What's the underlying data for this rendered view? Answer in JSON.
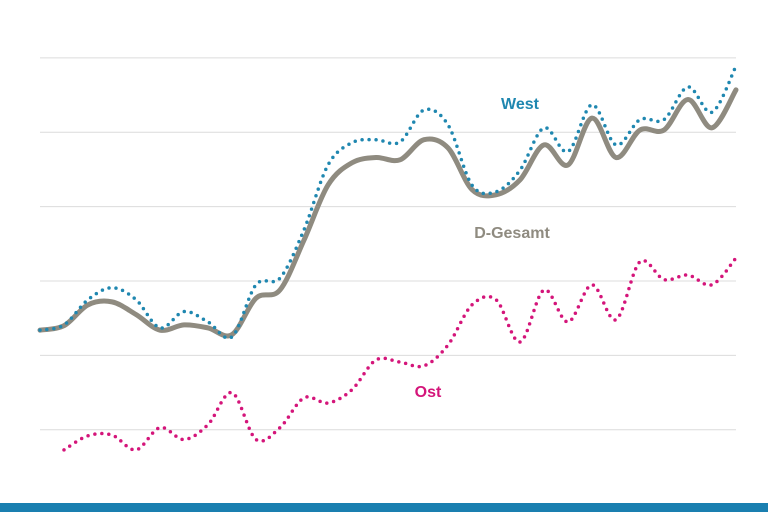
{
  "chart_data": {
    "type": "line",
    "categories": [
      null,
      null,
      null,
      null,
      null,
      null,
      null,
      null,
      null,
      null,
      null,
      null,
      null,
      null,
      null,
      null,
      null,
      null,
      null,
      null,
      null,
      null,
      null,
      null,
      null,
      null,
      null,
      null,
      null,
      null
    ],
    "ylim": [
      -0.5,
      5.2
    ],
    "yticks": [
      0,
      1,
      2,
      3,
      4,
      5
    ],
    "grid": true,
    "series": [
      {
        "name": "West",
        "color": "#1f87b0",
        "style": "dotted",
        "values": [
          1.34,
          1.41,
          1.75,
          1.91,
          1.75,
          1.37,
          1.59,
          1.45,
          1.25,
          1.95,
          2.04,
          2.69,
          3.56,
          3.86,
          3.9,
          3.87,
          4.3,
          4.1,
          3.29,
          3.2,
          3.49,
          4.06,
          3.74,
          4.37,
          3.83,
          4.17,
          4.17,
          4.61,
          4.27,
          4.89
        ]
      },
      {
        "name": "D-Gesamt",
        "color": "#8f8b80",
        "style": "solid",
        "values": [
          1.34,
          1.4,
          1.68,
          1.72,
          1.55,
          1.34,
          1.41,
          1.37,
          1.28,
          1.77,
          1.88,
          2.55,
          3.29,
          3.59,
          3.66,
          3.63,
          3.9,
          3.79,
          3.23,
          3.16,
          3.36,
          3.83,
          3.56,
          4.19,
          3.66,
          4.03,
          4.03,
          4.44,
          4.06,
          4.57
        ]
      },
      {
        "name": "Ost",
        "color": "#d4157a",
        "style": "dotted",
        "values": [
          null,
          -0.27,
          -0.08,
          -0.07,
          -0.27,
          0.03,
          -0.13,
          0.07,
          0.5,
          -0.13,
          0.03,
          0.43,
          0.36,
          0.54,
          0.94,
          0.91,
          0.86,
          1.14,
          1.68,
          1.75,
          1.18,
          1.88,
          1.45,
          1.95,
          1.48,
          2.26,
          2.02,
          2.08,
          1.95,
          2.31
        ]
      }
    ]
  }
}
